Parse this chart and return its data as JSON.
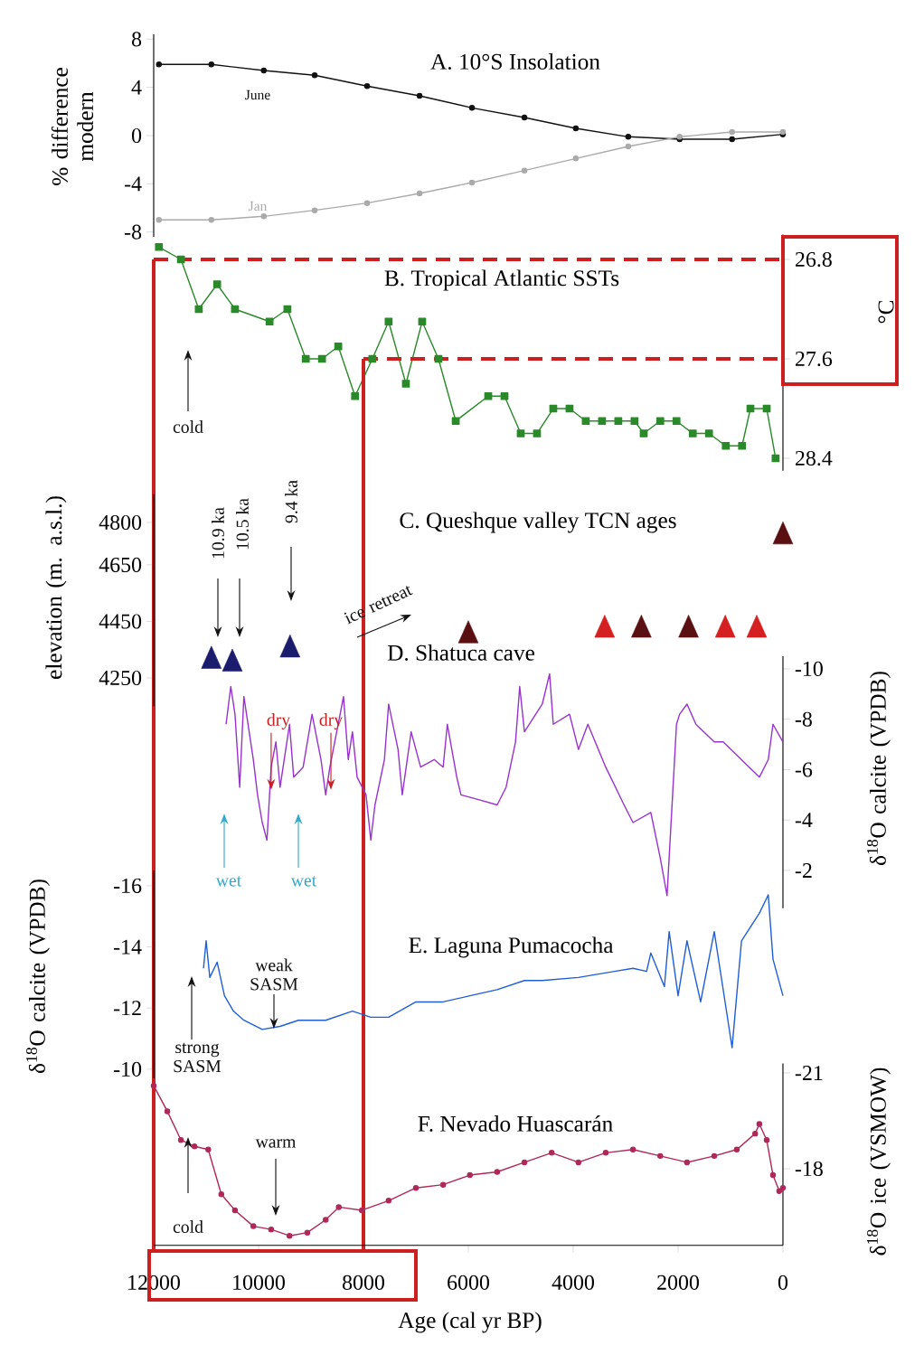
{
  "chart_data": [
    {
      "type": "line",
      "title": "A. 10°S Insolation",
      "ylabel": "% difference modern",
      "xlim": [
        12000,
        0
      ],
      "ylim": [
        -8.4,
        8.4
      ],
      "yticks": [
        -8,
        -4,
        0,
        4,
        8
      ],
      "tick_labels": "y",
      "marker": "circle",
      "x": [
        11900,
        10900,
        9900,
        8930,
        7930,
        6930,
        5930,
        4930,
        3950,
        2950,
        1970,
        970,
        0
      ],
      "series": [
        {
          "name": "June",
          "color": "#111111",
          "values": [
            5.9,
            5.9,
            5.4,
            5.0,
            4.1,
            3.3,
            2.3,
            1.5,
            0.6,
            -0.1,
            -0.3,
            -0.3,
            0.1
          ]
        },
        {
          "name": "Jan",
          "color": "#aaaaaa",
          "values": [
            -7.0,
            -7.0,
            -6.7,
            -6.2,
            -5.6,
            -4.8,
            -3.9,
            -2.9,
            -1.9,
            -0.9,
            -0.1,
            0.3,
            0.3
          ]
        }
      ]
    },
    {
      "type": "line",
      "title": "B. Tropical Atlantic SSTs",
      "ylabel": "°C",
      "xlim": [
        12000,
        0
      ],
      "ylim": [
        28.5,
        26.6
      ],
      "yticks": [
        26.8,
        27.6,
        28.4
      ],
      "tick_labels": "y",
      "marker": "square",
      "color": "#2a8a2a",
      "x": [
        11900,
        11480,
        11140,
        10790,
        10450,
        9790,
        9450,
        9100,
        8790,
        8480,
        8160,
        7830,
        7520,
        7190,
        6880,
        6570,
        6240,
        5620,
        5310,
        5000,
        4690,
        4380,
        4070,
        3760,
        3450,
        3140,
        2830,
        2655,
        2340,
        2030,
        1720,
        1410,
        1090,
        780,
        620,
        310,
        140
      ],
      "values": [
        26.7,
        26.8,
        27.2,
        27.0,
        27.2,
        27.3,
        27.2,
        27.6,
        27.6,
        27.5,
        27.9,
        27.6,
        27.3,
        27.8,
        27.3,
        27.6,
        28.1,
        27.9,
        27.9,
        28.2,
        28.2,
        28.0,
        28.0,
        28.1,
        28.1,
        28.1,
        28.1,
        28.2,
        28.1,
        28.1,
        28.2,
        28.2,
        28.3,
        28.3,
        28.0,
        28.0,
        28.4
      ],
      "annotations": [
        "cold"
      ],
      "ref_lines": [
        {
          "axis": "x",
          "value": 12000,
          "color": "#cc1f1f"
        },
        {
          "axis": "x",
          "value": 8000,
          "color": "#cc1f1f"
        },
        {
          "axis": "y",
          "value": 26.8,
          "color": "#cc1f1f",
          "line_style": "dashed"
        },
        {
          "axis": "y",
          "value": 27.6,
          "color": "#cc1f1f",
          "line_style": "dashed"
        }
      ]
    },
    {
      "type": "scatter",
      "title": "C. Queshque valley TCN ages",
      "ylabel": "elevation (m. a.s.l.)",
      "xlim": [
        12000,
        0
      ],
      "ylim": [
        4150,
        4900
      ],
      "yticks": [
        4250,
        4450,
        4650,
        4800
      ],
      "tick_labels": "y",
      "marker": "triangle",
      "x": [
        10900,
        10500,
        9400,
        6000,
        3400,
        2700,
        1800,
        1100,
        500,
        0
      ],
      "values": [
        4310,
        4300,
        4350,
        4400,
        4420,
        4420,
        4420,
        4420,
        4420,
        4750
      ],
      "colors": [
        "#1c1c6e",
        "#1c1c6e",
        "#1c1c6e",
        "#5a1010",
        "#d42020",
        "#5a1010",
        "#5a1010",
        "#d42020",
        "#d42020",
        "#5a1010"
      ],
      "annotations": [
        "10.9 ka",
        "10.5 ka",
        "9.4 ka",
        "ice retreat"
      ]
    },
    {
      "type": "line",
      "title": "D. Shatuca cave",
      "ylabel": "δ$^{18}$O calcite (VPDB)",
      "xlim": [
        12000,
        0
      ],
      "ylim": [
        -0.5,
        -10.5
      ],
      "yticks": [
        -10,
        -8,
        -6,
        -4,
        -2
      ],
      "tick_labels": "y",
      "color": "#9933cc",
      "x": [
        10620,
        10530,
        10450,
        10360,
        10280,
        10100,
        10020,
        9930,
        9840,
        9760,
        9670,
        9590,
        9410,
        9330,
        9150,
        8980,
        8810,
        8720,
        8640,
        8380,
        8290,
        8210,
        8120,
        7950,
        7860,
        7780,
        7600,
        7520,
        7340,
        7260,
        7090,
        6910,
        6650,
        6480,
        6400,
        6220,
        6140,
        5790,
        5450,
        5280,
        5100,
        5020,
        4930,
        4590,
        4450,
        4380,
        4070,
        3900,
        3720,
        3380,
        3030,
        2860,
        2520,
        2340,
        2210,
        2030,
        1970,
        1830,
        1660,
        1310,
        1140,
        450,
        280,
        190,
        0
      ],
      "values": [
        -7.8,
        -9.3,
        -8.2,
        -5.3,
        -8.9,
        -6.4,
        -5.0,
        -3.9,
        -3.2,
        -6.1,
        -7.1,
        -5.3,
        -7.8,
        -5.7,
        -6.1,
        -8.2,
        -6.4,
        -5.0,
        -6.1,
        -8.9,
        -6.4,
        -7.5,
        -5.7,
        -5.0,
        -3.2,
        -4.6,
        -6.4,
        -8.6,
        -6.8,
        -5.0,
        -7.5,
        -6.1,
        -6.4,
        -6.1,
        -7.8,
        -5.7,
        -5.0,
        -4.8,
        -4.6,
        -5.3,
        -7.1,
        -9.3,
        -7.5,
        -8.6,
        -9.8,
        -7.8,
        -8.2,
        -6.8,
        -7.8,
        -6.1,
        -4.6,
        -3.9,
        -4.3,
        -2.5,
        -1.0,
        -7.8,
        -8.2,
        -8.6,
        -7.8,
        -7.1,
        -7.1,
        -5.7,
        -6.4,
        -7.8,
        -7.1
      ],
      "annotations": [
        {
          "text": "dry",
          "x": 9760,
          "y": -5.2
        },
        {
          "text": "dry",
          "x": 8620,
          "y": -5.2
        },
        "wet",
        "wet"
      ]
    },
    {
      "type": "line",
      "title": "E. Laguna Pumacocha",
      "ylabel": "δ$^{18}$O calcite (VPDB)",
      "xlim": [
        12000,
        0
      ],
      "ylim": [
        -9.7,
        -16.5
      ],
      "yticks": [
        -16,
        -14,
        -12,
        -10
      ],
      "tick_labels": "y",
      "color": "#1f5fd6",
      "x": [
        11050,
        11000,
        10930,
        10790,
        10650,
        10480,
        10280,
        9930,
        9590,
        9240,
        8720,
        8210,
        7860,
        7520,
        7000,
        6480,
        5970,
        5450,
        4930,
        4590,
        3900,
        3210,
        2860,
        2600,
        2520,
        2260,
        2170,
        2000,
        1830,
        1570,
        1310,
        1050,
        970,
        790,
        450,
        280,
        190,
        0
      ],
      "values": [
        -13.3,
        -14.2,
        -13.0,
        -13.5,
        -12.4,
        -11.9,
        -11.6,
        -11.3,
        -11.4,
        -11.6,
        -11.6,
        -11.9,
        -11.7,
        -11.7,
        -12.2,
        -12.2,
        -12.4,
        -12.6,
        -12.9,
        -12.9,
        -13.0,
        -13.2,
        -13.3,
        -13.2,
        -13.8,
        -12.7,
        -14.5,
        -12.4,
        -14.2,
        -12.2,
        -14.5,
        -11.6,
        -10.7,
        -14.2,
        -15.1,
        -15.7,
        -13.6,
        -12.4
      ],
      "annotations": [
        "strong SASM",
        "weak SASM"
      ]
    },
    {
      "type": "line",
      "title": "F. Nevado Huascarán",
      "ylabel": "δ$^{18}$O ice (VSMOW)",
      "xlabel": "Age (cal yr BP)",
      "xlim": [
        12000,
        0
      ],
      "ylim": [
        -15.6,
        -21.3
      ],
      "xticks": [
        12000,
        10000,
        8000,
        6000,
        4000,
        2000,
        0
      ],
      "yticks": [
        -21,
        -18
      ],
      "marker": "circle",
      "color": "#b0285a",
      "x": [
        12000,
        11740,
        11480,
        11220,
        10960,
        10710,
        10450,
        10100,
        9760,
        9410,
        9070,
        8720,
        8470,
        8030,
        7520,
        7000,
        6480,
        5970,
        5450,
        4930,
        4410,
        3900,
        3380,
        2860,
        2340,
        1830,
        1310,
        880,
        530,
        450,
        310,
        190,
        70,
        0
      ],
      "values": [
        -20.6,
        -19.8,
        -18.9,
        -18.7,
        -18.6,
        -17.2,
        -16.7,
        -16.2,
        -16.1,
        -15.9,
        -16.0,
        -16.4,
        -16.8,
        -16.7,
        -17.0,
        -17.4,
        -17.5,
        -17.8,
        -17.9,
        -18.2,
        -18.5,
        -18.2,
        -18.5,
        -18.6,
        -18.4,
        -18.2,
        -18.4,
        -18.6,
        -19.1,
        -19.4,
        -18.9,
        -17.8,
        -17.3,
        -17.4
      ],
      "annotations": [
        "warm",
        "cold"
      ]
    }
  ]
}
